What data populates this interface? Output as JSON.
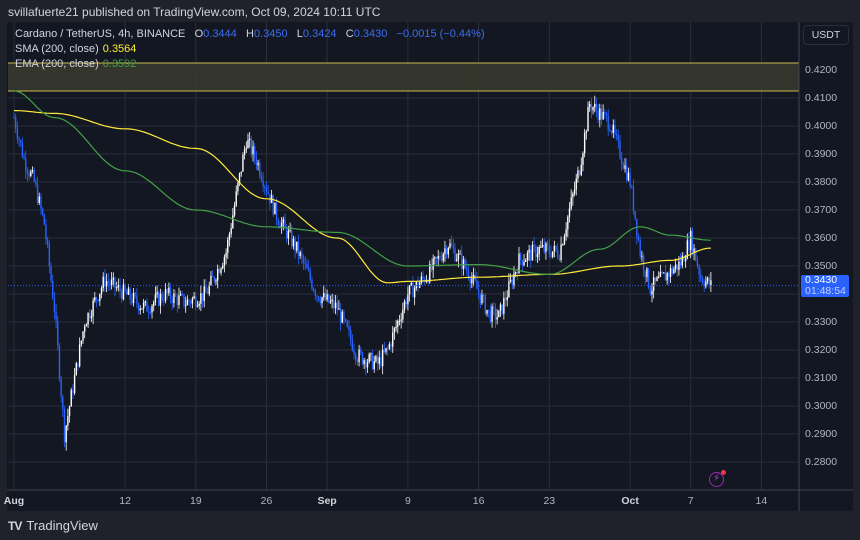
{
  "header": {
    "publisher_line": "svillafuerte21 published on TradingView.com, Oct 09, 2024 10:11 UTC"
  },
  "legend": {
    "symbol": "Cardano / TetherUS, 4h, BINANCE",
    "open_label": "O",
    "open": "0.3444",
    "high_label": "H",
    "high": "0.3450",
    "low_label": "L",
    "low": "0.3424",
    "close_label": "C",
    "close": "0.3430",
    "change": "−0.0015 (−0.44%)",
    "sma_label": "SMA (200, close)",
    "sma_value": "0.3564",
    "ema_label": "EMA (200, close)",
    "ema_value": "0.3592"
  },
  "price_axis": {
    "currency": "USDT",
    "ticks": [
      "0.4200",
      "0.4100",
      "0.4000",
      "0.3900",
      "0.3800",
      "0.3700",
      "0.3600",
      "0.3500",
      "0.3300",
      "0.3200",
      "0.3100",
      "0.3000",
      "0.2900",
      "0.2800"
    ],
    "last_price": "0.3430",
    "countdown": "01:48:54"
  },
  "time_axis": {
    "ticks": [
      {
        "label": "Aug",
        "bold": true
      },
      {
        "label": "12",
        "bold": false
      },
      {
        "label": "19",
        "bold": false
      },
      {
        "label": "26",
        "bold": false
      },
      {
        "label": "Sep",
        "bold": true
      },
      {
        "label": "9",
        "bold": false
      },
      {
        "label": "16",
        "bold": false
      },
      {
        "label": "23",
        "bold": false
      },
      {
        "label": "Oct",
        "bold": true
      },
      {
        "label": "7",
        "bold": false
      },
      {
        "label": "14",
        "bold": false
      }
    ]
  },
  "footer": {
    "brand": "TradingView",
    "logo": "TV"
  },
  "colors": {
    "background": "#131722",
    "grid": "#2a2e39",
    "up_candle": "#ffffff",
    "down_candle": "#2962ff",
    "sma": "#ffeb3b",
    "ema": "#43a047",
    "resistance_zone": "#3a3a2e",
    "resistance_border": "#c8b74a",
    "last_price": "#2962ff"
  },
  "chart_data": {
    "type": "candlestick",
    "title": "Cardano / TetherUS, 4h, BINANCE",
    "xlabel": "",
    "ylabel": "USDT",
    "ylim": [
      0.27,
      0.428
    ],
    "grid": true,
    "resistance_zone": [
      0.4125,
      0.4225
    ],
    "last_price": 0.343,
    "price_path": {
      "x_dates": [
        "Aug 1",
        "Aug 2",
        "Aug 3",
        "Aug 4",
        "Aug 5",
        "Aug 6",
        "Aug 8",
        "Aug 10",
        "Aug 12",
        "Aug 14",
        "Aug 16",
        "Aug 18",
        "Aug 20",
        "Aug 22",
        "Aug 24",
        "Aug 25",
        "Aug 27",
        "Aug 29",
        "Aug 31",
        "Sep 2",
        "Sep 4",
        "Sep 6",
        "Sep 7",
        "Sep 9",
        "Sep 11",
        "Sep 13",
        "Sep 15",
        "Sep 17",
        "Sep 18",
        "Sep 20",
        "Sep 22",
        "Sep 24",
        "Sep 26",
        "Sep 27",
        "Sep 29",
        "Oct 1",
        "Oct 2",
        "Oct 3",
        "Oct 5",
        "Oct 6",
        "Oct 7",
        "Oct 8",
        "Oct 9"
      ],
      "close": [
        0.403,
        0.388,
        0.38,
        0.365,
        0.335,
        0.29,
        0.33,
        0.345,
        0.34,
        0.335,
        0.34,
        0.337,
        0.34,
        0.355,
        0.395,
        0.388,
        0.368,
        0.356,
        0.34,
        0.335,
        0.318,
        0.315,
        0.32,
        0.34,
        0.347,
        0.358,
        0.348,
        0.333,
        0.332,
        0.352,
        0.356,
        0.355,
        0.385,
        0.408,
        0.401,
        0.38,
        0.355,
        0.342,
        0.348,
        0.351,
        0.36,
        0.346,
        0.343
      ]
    },
    "sma_200": {
      "x_dates": [
        "Aug 1",
        "Aug 5",
        "Aug 12",
        "Aug 19",
        "Aug 26",
        "Sep 2",
        "Sep 7",
        "Sep 9",
        "Sep 16",
        "Sep 23",
        "Sep 30",
        "Oct 5",
        "Oct 9"
      ],
      "values": [
        0.4055,
        0.4045,
        0.399,
        0.392,
        0.374,
        0.36,
        0.344,
        0.3445,
        0.346,
        0.347,
        0.35,
        0.352,
        0.3564
      ]
    },
    "ema_200": {
      "x_dates": [
        "Aug 1",
        "Aug 5",
        "Aug 12",
        "Aug 19",
        "Aug 26",
        "Sep 2",
        "Sep 9",
        "Sep 16",
        "Sep 23",
        "Sep 28",
        "Oct 2",
        "Oct 5",
        "Oct 9"
      ],
      "values": [
        0.4125,
        0.403,
        0.384,
        0.37,
        0.364,
        0.362,
        0.35,
        0.3505,
        0.347,
        0.356,
        0.364,
        0.361,
        0.3592
      ]
    }
  }
}
